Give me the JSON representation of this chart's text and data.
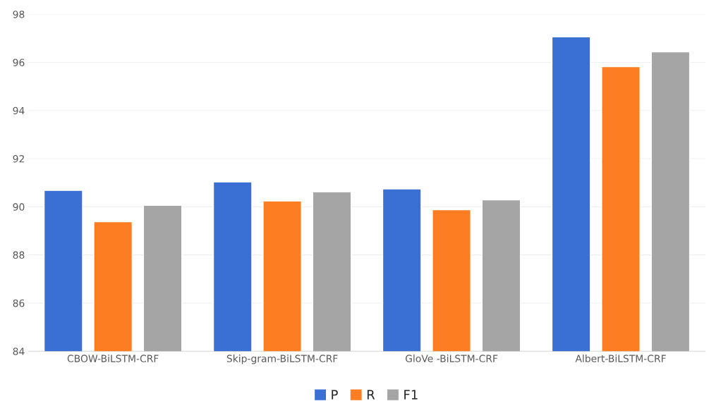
{
  "chart_data": {
    "type": "bar",
    "categories": [
      "CBOW-BiLSTM-CRF",
      "Skip-gram-BiLSTM-CRF",
      "GloVe -BiLSTM-CRF",
      "Albert-BiLSTM-CRF"
    ],
    "series": [
      {
        "name": "P",
        "color": "#3a6fd4",
        "values": [
          90.68,
          91.03,
          90.74,
          97.06
        ]
      },
      {
        "name": "R",
        "color": "#fd7e22",
        "values": [
          89.38,
          90.24,
          89.88,
          95.82
        ]
      },
      {
        "name": "F1",
        "color": "#a5a5a5",
        "values": [
          90.06,
          90.62,
          90.29,
          96.44
        ]
      }
    ],
    "ylim": [
      84,
      98
    ],
    "yticks": [
      84,
      86,
      88,
      90,
      92,
      94,
      96,
      98
    ],
    "grid": "y",
    "legend": "bottom"
  }
}
